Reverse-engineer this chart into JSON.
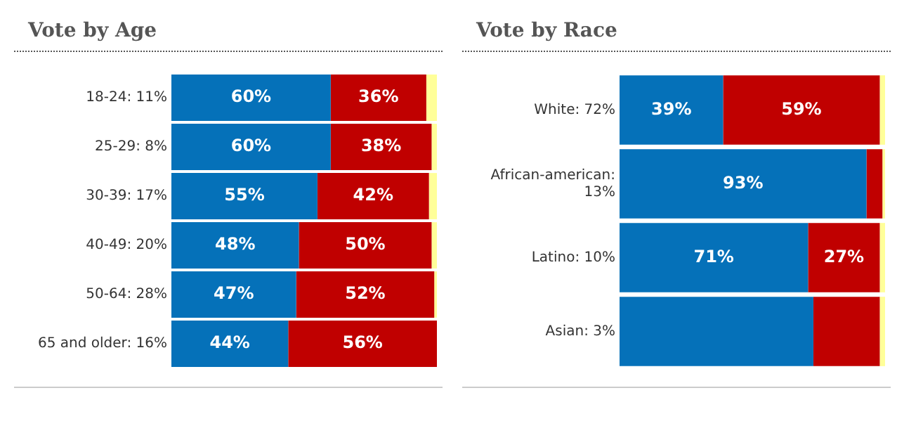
{
  "chart_data": [
    {
      "type": "bar",
      "orientation": "horizontal",
      "stacked": true,
      "title": "Vote by Age",
      "categories": [
        "18-24: 11%",
        "25-29: 8%",
        "30-39: 17%",
        "40-49: 20%",
        "50-64: 28%",
        "65 and older: 16%"
      ],
      "xlim": [
        0,
        100
      ],
      "tick_labels": "y",
      "series": [
        {
          "color": "#0571b9",
          "values": [
            60,
            60,
            55,
            48,
            47,
            44
          ],
          "value_labels": [
            "60%",
            "60%",
            "55%",
            "48%",
            "47%",
            "44%"
          ]
        },
        {
          "color": "#c00000",
          "values": [
            36,
            38,
            42,
            50,
            52,
            56
          ],
          "value_labels": [
            "36%",
            "38%",
            "42%",
            "50%",
            "52%",
            "56%"
          ]
        },
        {
          "color": "#ffff99",
          "values": [
            4,
            2,
            3,
            2,
            1,
            0
          ]
        }
      ]
    },
    {
      "type": "bar",
      "orientation": "horizontal",
      "stacked": true,
      "title": "Vote by Race",
      "categories": [
        "White: 72%",
        "African-american: 13%",
        "Latino: 10%",
        "Asian: 3%"
      ],
      "xlim": [
        0,
        100
      ],
      "tick_labels": "y",
      "series": [
        {
          "color": "#0571b9",
          "values": [
            39,
            93,
            71,
            73
          ],
          "value_labels": [
            "39%",
            "93%",
            "71%",
            null
          ]
        },
        {
          "color": "#c00000",
          "values": [
            59,
            6,
            27,
            25
          ],
          "value_labels": [
            "59%",
            null,
            "27%",
            null
          ]
        },
        {
          "color": "#ffff99",
          "values": [
            2,
            1,
            2,
            2
          ]
        }
      ]
    }
  ]
}
